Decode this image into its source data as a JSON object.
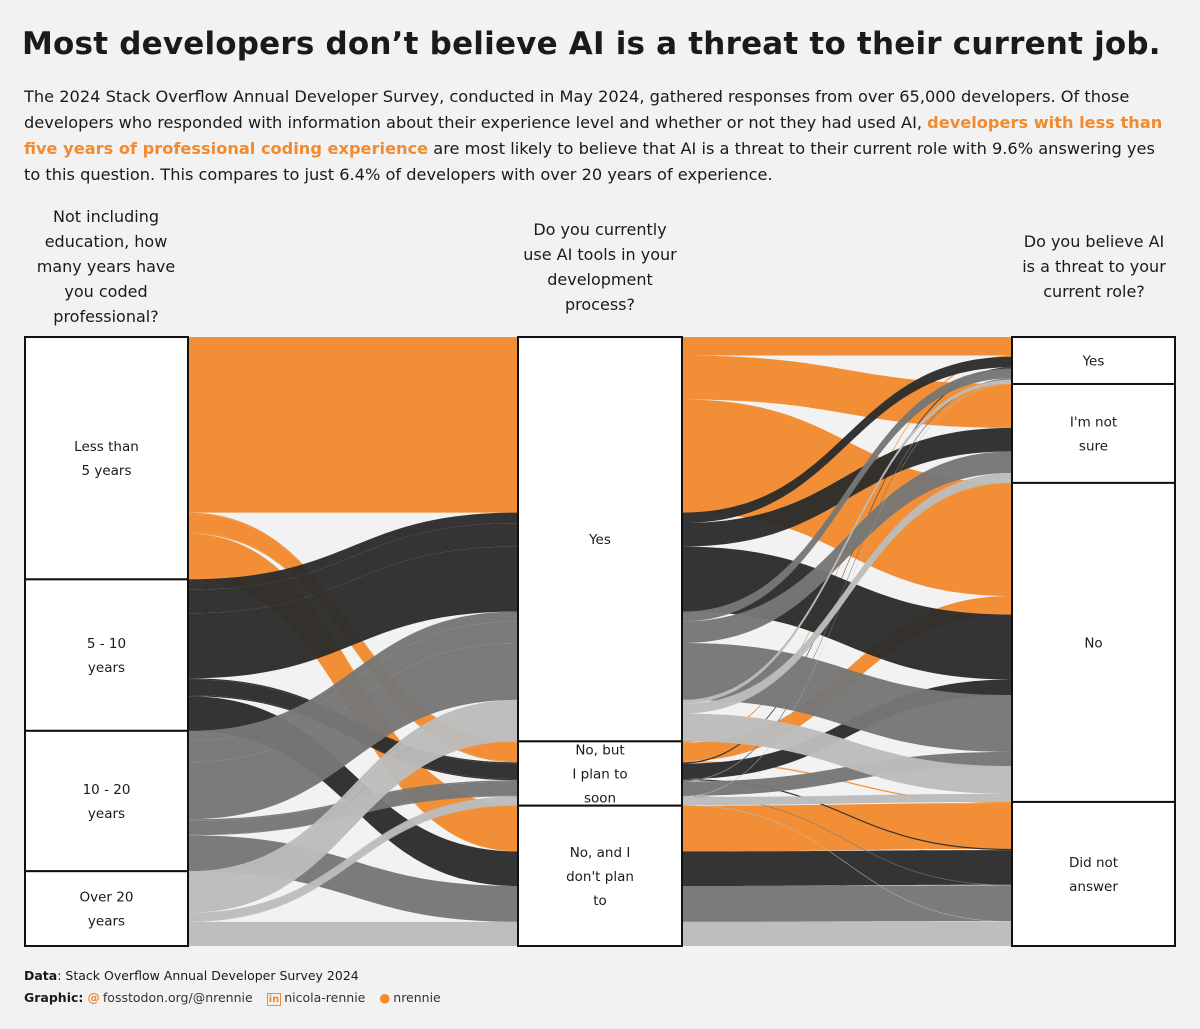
{
  "title": "Most developers don’t believe AI is a threat to their current job.",
  "subtitle": {
    "part1": "The 2024 Stack Overflow Annual Developer Survey, conducted in May 2024, gathered responses from over 65,000 developers. Of those developers who responded with information about their experience level and whether or not they had used AI, ",
    "highlight": "developers with less than five years of professional coding experience",
    "part2": " are most likely to believe that AI is a threat to their current role with 9.6% answering yes to this question. This compares to just 6.4% of developers with over 20 years of experience."
  },
  "axes": {
    "experience": "Not including education, how many years have you coded professional?",
    "ai_use": "Do you currently use AI tools in your development process?",
    "threat": "Do you believe AI is a threat to your current role?"
  },
  "colors": {
    "Less than 5 years": "#f28b30",
    "5 - 10 years": "#2d2d2d",
    "10 - 20 years": "#777777",
    "Over 20 years": "#bcbcbc",
    "background": "#f2f2f2"
  },
  "chart_data": {
    "type": "alluvial",
    "axes": [
      {
        "name": "experience",
        "categories": [
          "Less than 5 years",
          "5 - 10 years",
          "10 - 20 years",
          "Over 20 years"
        ],
        "labels": [
          "Less than\n5 years",
          "5 - 10\nyears",
          "10 - 20\nyears",
          "Over 20\nyears"
        ]
      },
      {
        "name": "ai_use",
        "categories": [
          "Yes",
          "No, but I plan to soon",
          "No, and I don't plan to"
        ],
        "labels": [
          "Yes",
          "No, but\nI plan to\nsoon",
          "No, and I\ndon't plan\nto"
        ]
      },
      {
        "name": "threat",
        "categories": [
          "Yes",
          "I'm not sure",
          "No",
          "Did not answer"
        ],
        "labels": [
          "Yes",
          "I'm not\nsure",
          "No",
          "Did not\nanswer"
        ]
      }
    ],
    "units": "share of respondents (%)",
    "flows": [
      {
        "experience": "Less than 5 years",
        "ai_use": "Yes",
        "threat": "Yes",
        "value": 3.0
      },
      {
        "experience": "Less than 5 years",
        "ai_use": "Yes",
        "threat": "I'm not sure",
        "value": 7.1
      },
      {
        "experience": "Less than 5 years",
        "ai_use": "Yes",
        "threat": "No",
        "value": 18.3
      },
      {
        "experience": "Less than 5 years",
        "ai_use": "No, but I plan to soon",
        "threat": "Yes",
        "value": 0.2
      },
      {
        "experience": "Less than 5 years",
        "ai_use": "No, but I plan to soon",
        "threat": "No",
        "value": 3.0
      },
      {
        "experience": "Less than 5 years",
        "ai_use": "No, but I plan to soon",
        "threat": "Did not answer",
        "value": 0.2
      },
      {
        "experience": "Less than 5 years",
        "ai_use": "No, and I don't plan to",
        "threat": "Did not answer",
        "value": 7.4
      },
      {
        "experience": "5 - 10 years",
        "ai_use": "Yes",
        "threat": "Yes",
        "value": 1.7
      },
      {
        "experience": "5 - 10 years",
        "ai_use": "Yes",
        "threat": "I'm not sure",
        "value": 3.8
      },
      {
        "experience": "5 - 10 years",
        "ai_use": "Yes",
        "threat": "No",
        "value": 10.5
      },
      {
        "experience": "5 - 10 years",
        "ai_use": "No, but I plan to soon",
        "threat": "Yes",
        "value": 0.2
      },
      {
        "experience": "5 - 10 years",
        "ai_use": "No, but I plan to soon",
        "threat": "No",
        "value": 2.5
      },
      {
        "experience": "5 - 10 years",
        "ai_use": "No, but I plan to soon",
        "threat": "Did not answer",
        "value": 0.2
      },
      {
        "experience": "5 - 10 years",
        "ai_use": "No, and I don't plan to",
        "threat": "Did not answer",
        "value": 5.6
      },
      {
        "experience": "10 - 20 years",
        "ai_use": "Yes",
        "threat": "Yes",
        "value": 1.6
      },
      {
        "experience": "10 - 20 years",
        "ai_use": "Yes",
        "threat": "I'm not sure",
        "value": 3.5
      },
      {
        "experience": "10 - 20 years",
        "ai_use": "Yes",
        "threat": "No",
        "value": 9.2
      },
      {
        "experience": "10 - 20 years",
        "ai_use": "No, but I plan to soon",
        "threat": "Yes",
        "value": 0.2
      },
      {
        "experience": "10 - 20 years",
        "ai_use": "No, but I plan to soon",
        "threat": "No",
        "value": 2.3
      },
      {
        "experience": "10 - 20 years",
        "ai_use": "No, but I plan to soon",
        "threat": "Did not answer",
        "value": 0.1
      },
      {
        "experience": "10 - 20 years",
        "ai_use": "No, and I don't plan to",
        "threat": "Did not answer",
        "value": 5.8
      },
      {
        "experience": "Over 20 years",
        "ai_use": "Yes",
        "threat": "Yes",
        "value": 0.6
      },
      {
        "experience": "Over 20 years",
        "ai_use": "Yes",
        "threat": "I'm not sure",
        "value": 1.6
      },
      {
        "experience": "Over 20 years",
        "ai_use": "Yes",
        "threat": "No",
        "value": 4.5
      },
      {
        "experience": "Over 20 years",
        "ai_use": "No, but I plan to soon",
        "threat": "Yes",
        "value": 0.1
      },
      {
        "experience": "Over 20 years",
        "ai_use": "No, but I plan to soon",
        "threat": "No",
        "value": 1.3
      },
      {
        "experience": "Over 20 years",
        "ai_use": "No, but I plan to soon",
        "threat": "Did not answer",
        "value": 0.1
      },
      {
        "experience": "Over 20 years",
        "ai_use": "No, and I don't plan to",
        "threat": "Did not answer",
        "value": 3.9
      }
    ]
  },
  "caption": {
    "data_label": "Data",
    "data_text": ": Stack Overflow Annual Developer Survey 2024",
    "graphic_label": "Graphic",
    "graphic_sep": ":",
    "mastodon": "fosstodon.org/@nrennie",
    "linkedin": "nicola-rennie",
    "github": "nrennie"
  }
}
